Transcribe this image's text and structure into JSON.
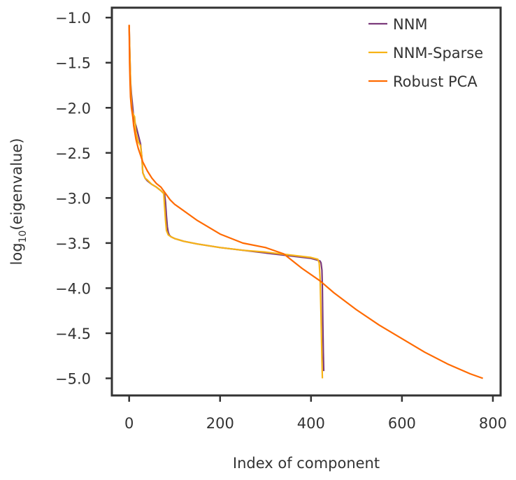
{
  "chart_data": {
    "type": "line",
    "title": "",
    "xlabel": "Index of component",
    "ylabel_base": "log",
    "ylabel_sub": "10",
    "ylabel_rest": "(eigenvalue)",
    "xlim": [
      -38,
      817
    ],
    "ylim": [
      -5.19,
      -0.89
    ],
    "x_ticks": [
      0,
      200,
      400,
      600,
      800
    ],
    "x_tick_labels": [
      "0",
      "200",
      "400",
      "600",
      "800"
    ],
    "y_ticks": [
      -1.0,
      -1.5,
      -2.0,
      -2.5,
      -3.0,
      -3.5,
      -4.0,
      -4.5,
      -5.0
    ],
    "y_tick_labels": [
      "−1.0",
      "−1.5",
      "−2.0",
      "−2.5",
      "−3.0",
      "−3.5",
      "−4.0",
      "−4.5",
      "−5.0"
    ],
    "grid": false,
    "legend_position": "top-right",
    "series": [
      {
        "name": "NNM",
        "color": "#7b3a7b",
        "x": [
          0,
          1,
          2,
          3,
          5,
          8,
          10,
          15,
          20,
          25,
          28,
          30,
          35,
          40,
          50,
          60,
          70,
          78,
          80,
          82,
          84,
          86,
          88,
          92,
          100,
          120,
          150,
          200,
          250,
          300,
          350,
          400,
          415,
          420,
          422,
          424,
          425,
          426,
          427,
          428
        ],
        "y": [
          -1.08,
          -1.3,
          -1.5,
          -1.7,
          -1.85,
          -2.0,
          -2.12,
          -2.2,
          -2.3,
          -2.4,
          -2.55,
          -2.72,
          -2.78,
          -2.81,
          -2.85,
          -2.88,
          -2.92,
          -2.96,
          -3.05,
          -3.2,
          -3.32,
          -3.38,
          -3.41,
          -3.43,
          -3.45,
          -3.48,
          -3.51,
          -3.55,
          -3.58,
          -3.61,
          -3.64,
          -3.67,
          -3.69,
          -3.7,
          -3.72,
          -3.8,
          -4.0,
          -4.4,
          -4.7,
          -4.92
        ]
      },
      {
        "name": "NNM-Sparse",
        "color": "#f7b316",
        "x": [
          0,
          1,
          2,
          3,
          4,
          6,
          8,
          10,
          12,
          15,
          20,
          25,
          28,
          30,
          35,
          40,
          50,
          60,
          70,
          76,
          78,
          80,
          82,
          86,
          92,
          100,
          120,
          150,
          200,
          250,
          300,
          350,
          400,
          415,
          418,
          420,
          422,
          424,
          425
        ],
        "y": [
          -1.08,
          -1.3,
          -1.5,
          -1.7,
          -1.85,
          -2.02,
          -2.06,
          -2.08,
          -2.1,
          -2.28,
          -2.38,
          -2.42,
          -2.55,
          -2.72,
          -2.78,
          -2.8,
          -2.85,
          -2.88,
          -2.92,
          -2.95,
          -3.1,
          -3.25,
          -3.36,
          -3.41,
          -3.43,
          -3.45,
          -3.48,
          -3.51,
          -3.55,
          -3.58,
          -3.6,
          -3.63,
          -3.66,
          -3.68,
          -3.72,
          -3.9,
          -4.3,
          -4.8,
          -5.0
        ]
      },
      {
        "name": "Robust PCA",
        "color": "#ff6a00",
        "x": [
          0,
          1,
          2,
          3,
          5,
          8,
          10,
          15,
          20,
          30,
          40,
          50,
          60,
          70,
          80,
          90,
          100,
          150,
          200,
          250,
          300,
          340,
          380,
          420,
          450,
          500,
          550,
          600,
          650,
          700,
          750,
          778
        ],
        "y": [
          -1.08,
          -1.5,
          -1.72,
          -1.88,
          -2.0,
          -2.1,
          -2.2,
          -2.35,
          -2.45,
          -2.6,
          -2.7,
          -2.78,
          -2.84,
          -2.88,
          -2.95,
          -3.02,
          -3.07,
          -3.25,
          -3.4,
          -3.5,
          -3.55,
          -3.62,
          -3.78,
          -3.92,
          -4.05,
          -4.24,
          -4.41,
          -4.56,
          -4.71,
          -4.84,
          -4.95,
          -5.0
        ]
      }
    ]
  }
}
